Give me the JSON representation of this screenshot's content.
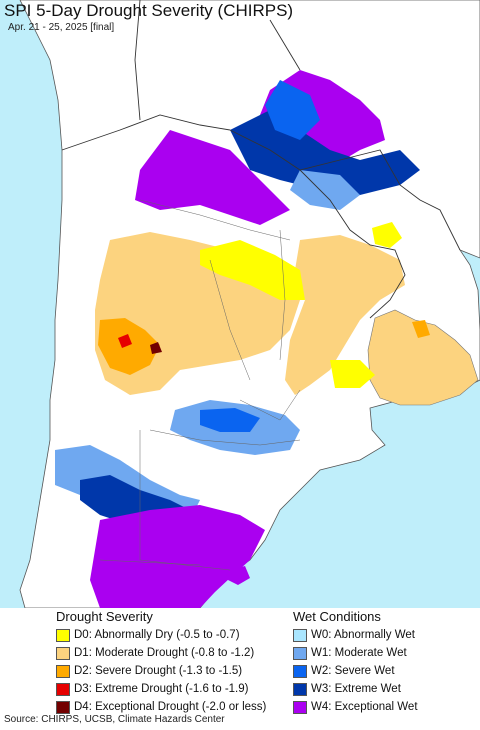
{
  "title": "SPI 5-Day Drought Severity (CHIRPS)",
  "subtitle": "Apr. 21 - 25, 2025 [final]",
  "legend": {
    "drought_heading": "Drought Severity",
    "wet_heading": "Wet Conditions",
    "drought_items": [
      {
        "label": "D0: Abnormally Dry (-0.5 to -0.7)",
        "color": "#ffff00"
      },
      {
        "label": "D1: Moderate Drought (-0.8 to -1.2)",
        "color": "#fcd37f"
      },
      {
        "label": "D2: Severe Drought (-1.3 to -1.5)",
        "color": "#ffaa00"
      },
      {
        "label": "D3: Extreme Drought (-1.6 to -1.9)",
        "color": "#e60000"
      },
      {
        "label": "D4: Exceptional Drought (-2.0 or less)",
        "color": "#730000"
      }
    ],
    "wet_items": [
      {
        "label": "W0: Abnormally Wet",
        "color": "#aae6ff"
      },
      {
        "label": "W1: Moderate Wet",
        "color": "#6fa8f0"
      },
      {
        "label": "W2: Severe Wet",
        "color": "#0a64f0"
      },
      {
        "label": "W3: Extreme Wet",
        "color": "#0037aa"
      },
      {
        "label": "W4: Exceptional Wet",
        "color": "#aa00f0"
      }
    ]
  },
  "map_colors": {
    "ocean": "#bfeefa",
    "land": "#ffffff",
    "land_outside": "#ffffff",
    "border": "#333333"
  },
  "source": "Source: CHIRPS, UCSB, Climate Hazards Center"
}
